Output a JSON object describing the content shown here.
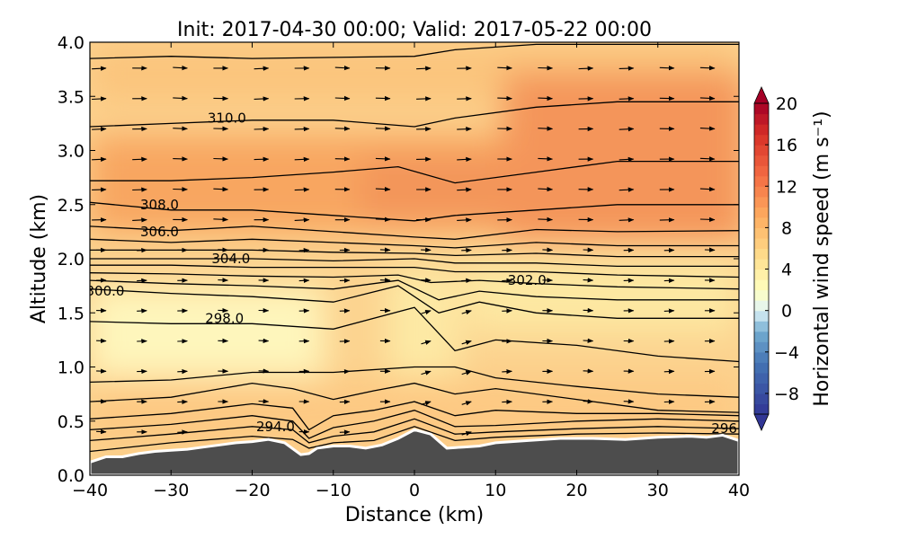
{
  "chart_data": {
    "type": "contour-section",
    "title": "Init: 2017-04-30 00:00; Valid: 2017-05-22 00:00",
    "xlabel": "Distance (km)",
    "ylabel": "Altitude (km)",
    "xlim": [
      -40,
      40
    ],
    "ylim": [
      0.0,
      4.0
    ],
    "xticks": [
      "−40",
      "−30",
      "−20",
      "−10",
      "0",
      "10",
      "20",
      "30",
      "40"
    ],
    "xtick_values": [
      -40,
      -30,
      -20,
      -10,
      0,
      10,
      20,
      30,
      40
    ],
    "yticks": [
      "0.0",
      "0.5",
      "1.0",
      "1.5",
      "2.0",
      "2.5",
      "3.0",
      "3.5",
      "4.0"
    ],
    "ytick_values": [
      0.0,
      0.5,
      1.0,
      1.5,
      2.0,
      2.5,
      3.0,
      3.5,
      4.0
    ],
    "colorbar": {
      "label": "Horizontal wind speed (m s⁻¹)",
      "range": [
        -10,
        20
      ],
      "ticks": [
        "20",
        "16",
        "12",
        "8",
        "4",
        "0",
        "−4",
        "−8"
      ],
      "tick_values": [
        20,
        16,
        12,
        8,
        4,
        0,
        -4,
        -8
      ],
      "colormap": "RdYlBu_r",
      "extend": "both"
    },
    "terrain": {
      "x": [
        -40,
        -38,
        -36,
        -34,
        -32,
        -30,
        -28,
        -26,
        -24,
        -22,
        -20,
        -18,
        -16,
        -14,
        -13,
        -12,
        -10,
        -8,
        -6,
        -4,
        -2,
        0,
        2,
        4,
        6,
        8,
        10,
        14,
        18,
        22,
        26,
        30,
        34,
        36,
        38,
        40
      ],
      "z": [
        0.12,
        0.17,
        0.17,
        0.2,
        0.22,
        0.23,
        0.24,
        0.26,
        0.28,
        0.3,
        0.31,
        0.33,
        0.3,
        0.19,
        0.2,
        0.25,
        0.27,
        0.27,
        0.25,
        0.28,
        0.34,
        0.42,
        0.38,
        0.25,
        0.26,
        0.27,
        0.3,
        0.32,
        0.34,
        0.34,
        0.33,
        0.35,
        0.36,
        0.35,
        0.37,
        0.32
      ],
      "color": "#4d4d4d"
    },
    "theta_contours": [
      {
        "level": 294.0,
        "x": [
          -40,
          -30,
          -20,
          -15,
          -13,
          -10,
          -5,
          0,
          5,
          10,
          20,
          30,
          40
        ],
        "y": [
          0.22,
          0.3,
          0.36,
          0.33,
          0.25,
          0.3,
          0.32,
          0.45,
          0.32,
          0.35,
          0.38,
          0.39,
          0.38
        ]
      },
      {
        "level": 294.5,
        "x": [
          -40,
          -30,
          -20,
          -15,
          -13,
          -10,
          -5,
          0,
          5,
          10,
          20,
          30,
          40
        ],
        "y": [
          0.32,
          0.38,
          0.45,
          0.42,
          0.3,
          0.36,
          0.4,
          0.52,
          0.38,
          0.4,
          0.43,
          0.45,
          0.43
        ]
      },
      {
        "level": 295.0,
        "x": [
          -40,
          -30,
          -20,
          -15,
          -13,
          -10,
          -5,
          0,
          5,
          10,
          20,
          30,
          40
        ],
        "y": [
          0.42,
          0.47,
          0.55,
          0.5,
          0.34,
          0.44,
          0.5,
          0.6,
          0.45,
          0.46,
          0.5,
          0.52,
          0.5
        ]
      },
      {
        "level": 295.5,
        "x": [
          -40,
          -30,
          -20,
          -15,
          -13,
          -10,
          -5,
          0,
          5,
          10,
          20,
          30,
          40
        ],
        "y": [
          0.52,
          0.57,
          0.66,
          0.62,
          0.42,
          0.55,
          0.6,
          0.68,
          0.55,
          0.6,
          0.57,
          0.57,
          0.55
        ]
      },
      {
        "level": 296.0,
        "x": [
          -40,
          -30,
          -20,
          -15,
          -10,
          -5,
          0,
          5,
          10,
          20,
          30,
          40
        ],
        "y": [
          0.68,
          0.72,
          0.85,
          0.8,
          0.7,
          0.78,
          0.85,
          0.75,
          0.8,
          0.7,
          0.6,
          0.58
        ]
      },
      {
        "level": 297.0,
        "x": [
          -40,
          -30,
          -20,
          -10,
          0,
          5,
          10,
          20,
          30,
          40
        ],
        "y": [
          0.86,
          0.88,
          0.95,
          0.95,
          1.0,
          1.0,
          0.9,
          0.82,
          0.75,
          0.72
        ]
      },
      {
        "level": 298.0,
        "x": [
          -40,
          -30,
          -20,
          -10,
          0,
          5,
          10,
          20,
          30,
          40
        ],
        "y": [
          1.42,
          1.4,
          1.4,
          1.35,
          1.55,
          1.15,
          1.25,
          1.2,
          1.1,
          1.05
        ]
      },
      {
        "level": 300.0,
        "x": [
          -40,
          -30,
          -20,
          -10,
          -2,
          3,
          8,
          15,
          25,
          40
        ],
        "y": [
          1.72,
          1.68,
          1.65,
          1.6,
          1.75,
          1.5,
          1.6,
          1.5,
          1.45,
          1.45
        ]
      },
      {
        "level": 301.0,
        "x": [
          -40,
          -30,
          -20,
          -10,
          -2,
          3,
          8,
          15,
          25,
          40
        ],
        "y": [
          1.8,
          1.77,
          1.75,
          1.72,
          1.8,
          1.62,
          1.7,
          1.65,
          1.62,
          1.62
        ]
      },
      {
        "level": 302.0,
        "x": [
          -40,
          -30,
          -20,
          -10,
          -2,
          2,
          8,
          15,
          25,
          40
        ],
        "y": [
          1.87,
          1.86,
          1.84,
          1.83,
          1.85,
          1.78,
          1.8,
          1.77,
          1.74,
          1.72
        ]
      },
      {
        "level": 303.0,
        "x": [
          -40,
          -30,
          -20,
          -10,
          0,
          5,
          15,
          25,
          40
        ],
        "y": [
          1.94,
          1.94,
          1.92,
          1.92,
          1.92,
          1.88,
          1.88,
          1.85,
          1.83
        ]
      },
      {
        "level": 304.0,
        "x": [
          -40,
          -30,
          -20,
          -10,
          0,
          5,
          15,
          25,
          40
        ],
        "y": [
          2.0,
          2.0,
          2.0,
          1.98,
          2.0,
          1.96,
          1.96,
          1.93,
          1.93
        ]
      },
      {
        "level": 305.0,
        "x": [
          -40,
          -30,
          -20,
          -10,
          0,
          5,
          15,
          25,
          40
        ],
        "y": [
          2.08,
          2.08,
          2.08,
          2.06,
          2.05,
          2.03,
          2.05,
          2.02,
          2.02
        ]
      },
      {
        "level": 306.0,
        "x": [
          -40,
          -30,
          -20,
          -10,
          0,
          5,
          15,
          25,
          40
        ],
        "y": [
          2.18,
          2.15,
          2.18,
          2.15,
          2.12,
          2.1,
          2.15,
          2.12,
          2.12
        ]
      },
      {
        "level": 307.0,
        "x": [
          -40,
          -30,
          -20,
          -10,
          0,
          5,
          15,
          25,
          40
        ],
        "y": [
          2.3,
          2.26,
          2.3,
          2.25,
          2.2,
          2.18,
          2.27,
          2.25,
          2.26
        ]
      },
      {
        "level": 308.0,
        "x": [
          -40,
          -30,
          -20,
          -10,
          0,
          5,
          15,
          25,
          40
        ],
        "y": [
          2.52,
          2.45,
          2.45,
          2.4,
          2.35,
          2.4,
          2.45,
          2.5,
          2.5
        ]
      },
      {
        "level": 309.0,
        "x": [
          -40,
          -30,
          -20,
          -10,
          -2,
          5,
          15,
          25,
          40
        ],
        "y": [
          2.72,
          2.72,
          2.75,
          2.8,
          2.85,
          2.7,
          2.8,
          2.9,
          2.9
        ]
      },
      {
        "level": 310.0,
        "x": [
          -40,
          -30,
          -20,
          -10,
          0,
          5,
          15,
          25,
          40
        ],
        "y": [
          3.22,
          3.25,
          3.28,
          3.28,
          3.22,
          3.3,
          3.4,
          3.45,
          3.45
        ]
      },
      {
        "level": 311.0,
        "x": [
          -40,
          -30,
          -20,
          -10,
          0,
          5,
          15,
          25,
          40
        ],
        "y": [
          3.85,
          3.87,
          3.85,
          3.86,
          3.87,
          3.93,
          3.98,
          3.98,
          3.98
        ]
      }
    ],
    "contour_labels": [
      {
        "text": "310.0",
        "x": -25.5,
        "y": 3.3
      },
      {
        "text": "308.0",
        "x": -33.8,
        "y": 2.5
      },
      {
        "text": "306.0",
        "x": -33.8,
        "y": 2.25
      },
      {
        "text": "304.0",
        "x": -25.0,
        "y": 2.0
      },
      {
        "text": "300.0",
        "x": -40.5,
        "y": 1.7
      },
      {
        "text": "298.0",
        "x": -25.8,
        "y": 1.45
      },
      {
        "text": "302.0",
        "x": 11.5,
        "y": 1.8
      },
      {
        "text": "294.0",
        "x": -19.5,
        "y": 0.45
      },
      {
        "text": "296",
        "x": 36.6,
        "y": 0.43
      }
    ]
  }
}
